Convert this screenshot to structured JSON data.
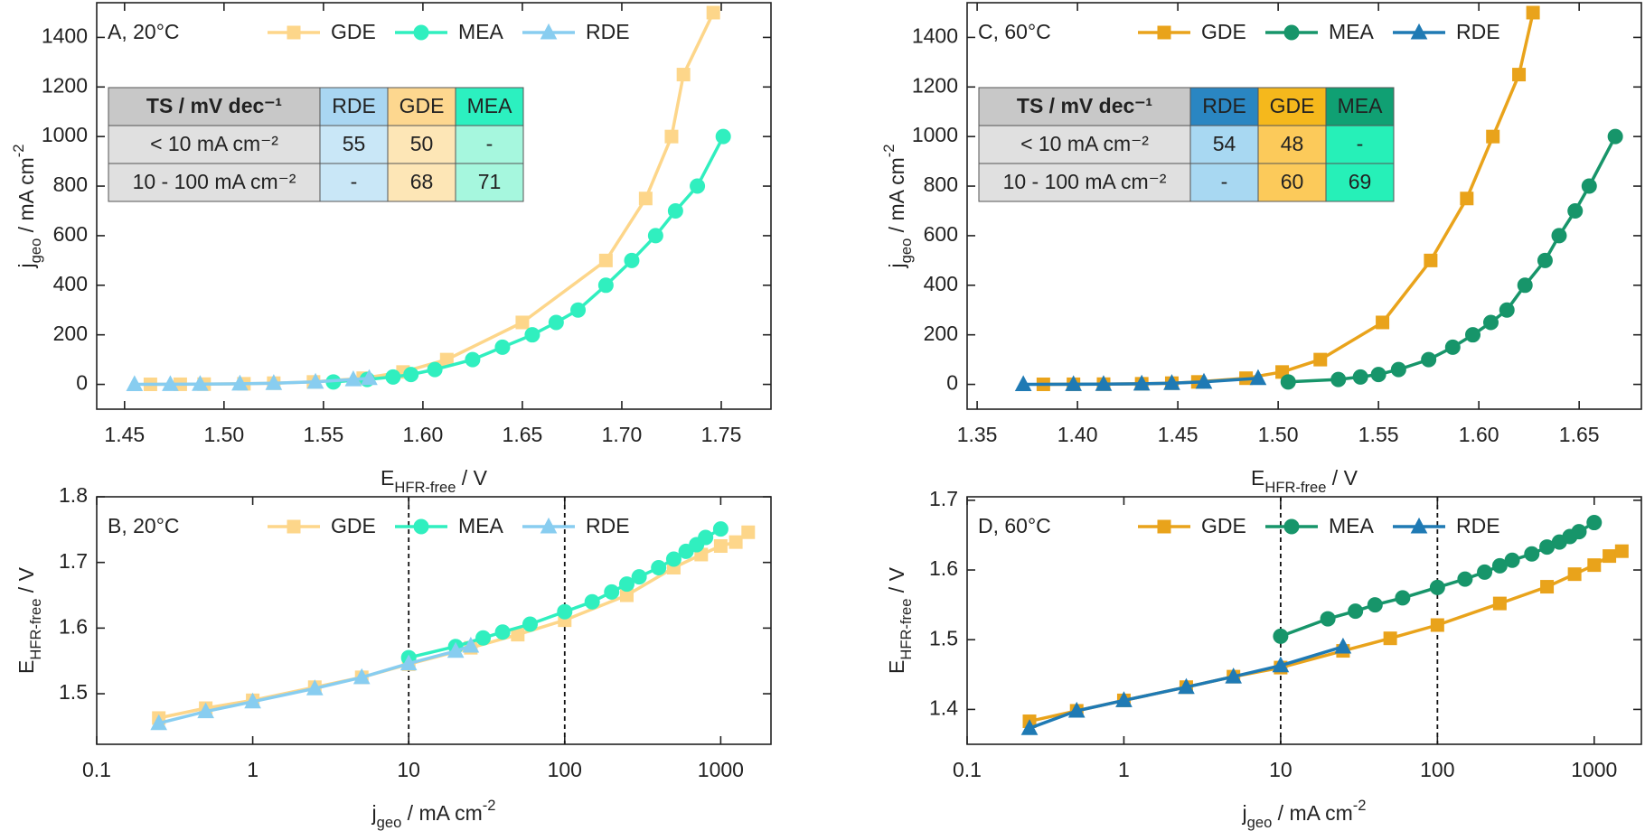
{
  "chart_data": [
    {
      "type": "line",
      "title": "A, 20°C",
      "xlabel": [
        {
          "text": "E"
        },
        {
          "text": "HFR-free",
          "sub": true
        },
        {
          "text": " / V"
        }
      ],
      "ylabel": [
        {
          "text": "j"
        },
        {
          "text": "geo",
          "sub": true
        },
        {
          "text": " / mA cm"
        },
        {
          "text": "-2",
          "sup": true
        }
      ],
      "xlim": [
        1.436,
        1.775
      ],
      "xticks": [
        1.45,
        {
          "value": 1.5,
          "label": "1.50"
        },
        1.55,
        {
          "value": 1.6,
          "label": "1.60"
        },
        1.65,
        {
          "value": 1.7,
          "label": "1.70"
        },
        1.75
      ],
      "ylim": [
        -100,
        1540
      ],
      "yticks": [
        0,
        200,
        400,
        600,
        800,
        1000,
        1200,
        1400
      ],
      "series": [
        {
          "name": "GDE",
          "color": "#fdd68a",
          "marker": "square",
          "x": [
            1.463,
            1.478,
            1.49,
            1.51,
            1.525,
            1.545,
            1.57,
            1.59,
            1.612,
            1.65,
            1.692,
            1.712,
            1.725,
            1.731,
            1.746
          ],
          "values": [
            0.25,
            0.5,
            1,
            2.5,
            5,
            10,
            25,
            50,
            100,
            250,
            500,
            750,
            1000,
            1250,
            1500
          ]
        },
        {
          "name": "MEA",
          "color": "#30efbf",
          "marker": "circle",
          "x": [
            1.555,
            1.572,
            1.585,
            1.594,
            1.606,
            1.625,
            1.64,
            1.655,
            1.667,
            1.678,
            1.692,
            1.705,
            1.717,
            1.727,
            1.738,
            1.751
          ],
          "values": [
            10,
            20,
            30,
            40,
            60,
            100,
            150,
            200,
            250,
            300,
            400,
            500,
            600,
            700,
            800,
            1000
          ]
        },
        {
          "name": "RDE",
          "color": "#88cdf0",
          "marker": "triangle",
          "x": [
            1.455,
            1.473,
            1.488,
            1.508,
            1.525,
            1.546,
            1.565,
            1.573
          ],
          "values": [
            0.25,
            0.5,
            1,
            2.5,
            5,
            10,
            20,
            25
          ]
        }
      ],
      "table": {
        "header": [
          "TS / mV dec⁻¹",
          "RDE",
          "GDE",
          "MEA"
        ],
        "header_colors": [
          "#c8c8c8",
          "#a9d6f2",
          "#fdd78f",
          "#2cf0c0"
        ],
        "body_colors": [
          "#e0e0e0",
          "#c9e7f7",
          "#fde6b6",
          "#a6f7de"
        ],
        "rows": [
          [
            "< 10 mA cm⁻²",
            55,
            50,
            "-"
          ],
          [
            "10 - 100 mA cm⁻²",
            "-",
            68,
            71
          ]
        ]
      }
    },
    {
      "type": "line",
      "title": "B, 20°C",
      "log_x": true,
      "xlabel": [
        {
          "text": "j"
        },
        {
          "text": "geo",
          "sub": true
        },
        {
          "text": " / mA cm"
        },
        {
          "text": "-2",
          "sup": true
        }
      ],
      "ylabel": [
        {
          "text": "E"
        },
        {
          "text": "HFR-free",
          "sub": true
        },
        {
          "text": " / V"
        }
      ],
      "xlim": [
        0.1,
        2100
      ],
      "xticks": [
        0.1,
        1,
        10,
        100,
        1000
      ],
      "ylim": [
        1.423,
        1.8
      ],
      "yticks": [
        1.5,
        1.6,
        1.7,
        1.8
      ],
      "vlines": [
        10,
        100
      ],
      "series": [
        {
          "name": "GDE",
          "color": "#fdd68a",
          "marker": "square",
          "x": [
            0.25,
            0.5,
            1,
            2.5,
            5,
            10,
            25,
            50,
            100,
            250,
            500,
            750,
            1000,
            1250,
            1500
          ],
          "values": [
            1.463,
            1.478,
            1.49,
            1.51,
            1.525,
            1.545,
            1.57,
            1.59,
            1.612,
            1.65,
            1.692,
            1.712,
            1.725,
            1.731,
            1.746
          ]
        },
        {
          "name": "MEA",
          "color": "#30efbf",
          "marker": "circle",
          "x": [
            10,
            20,
            30,
            40,
            60,
            100,
            150,
            200,
            250,
            300,
            400,
            500,
            600,
            700,
            800,
            1000
          ],
          "values": [
            1.555,
            1.572,
            1.585,
            1.594,
            1.606,
            1.625,
            1.64,
            1.655,
            1.667,
            1.678,
            1.692,
            1.705,
            1.717,
            1.727,
            1.738,
            1.751
          ]
        },
        {
          "name": "RDE",
          "color": "#88cdf0",
          "marker": "triangle",
          "x": [
            0.25,
            0.5,
            1,
            2.5,
            5,
            10,
            20,
            25
          ],
          "values": [
            1.455,
            1.473,
            1.488,
            1.508,
            1.525,
            1.546,
            1.565,
            1.573
          ]
        }
      ]
    },
    {
      "type": "line",
      "title": "C, 60°C",
      "xlabel": [
        {
          "text": "E"
        },
        {
          "text": "HFR-free",
          "sub": true
        },
        {
          "text": " / V"
        }
      ],
      "ylabel": [
        {
          "text": "j"
        },
        {
          "text": "geo",
          "sub": true
        },
        {
          "text": " / mA cm"
        },
        {
          "text": "-2",
          "sup": true
        }
      ],
      "xlim": [
        1.345,
        1.681
      ],
      "xticks": [
        1.35,
        {
          "value": 1.4,
          "label": "1.40"
        },
        1.45,
        {
          "value": 1.5,
          "label": "1.50"
        },
        1.55,
        {
          "value": 1.6,
          "label": "1.60"
        },
        1.65
      ],
      "ylim": [
        -100,
        1540
      ],
      "yticks": [
        0,
        200,
        400,
        600,
        800,
        1000,
        1200,
        1400
      ],
      "series": [
        {
          "name": "GDE",
          "color": "#e9a31b",
          "marker": "square",
          "x": [
            1.383,
            1.398,
            1.413,
            1.432,
            1.447,
            1.46,
            1.484,
            1.502,
            1.521,
            1.552,
            1.576,
            1.594,
            1.607,
            1.62,
            1.627
          ],
          "values": [
            0.25,
            0.5,
            1,
            2.5,
            5,
            10,
            25,
            50,
            100,
            250,
            500,
            750,
            1000,
            1250,
            1500
          ]
        },
        {
          "name": "MEA",
          "color": "#17956a",
          "marker": "circle",
          "x": [
            1.505,
            1.53,
            1.541,
            1.55,
            1.56,
            1.575,
            1.587,
            1.597,
            1.606,
            1.614,
            1.623,
            1.633,
            1.64,
            1.648,
            1.655,
            1.668
          ],
          "values": [
            10,
            20,
            30,
            40,
            60,
            100,
            150,
            200,
            250,
            300,
            400,
            500,
            600,
            700,
            800,
            1000
          ]
        },
        {
          "name": "RDE",
          "color": "#1f7ab4",
          "marker": "triangle",
          "x": [
            1.373,
            1.398,
            1.413,
            1.432,
            1.447,
            1.463,
            1.49
          ],
          "values": [
            0.25,
            0.5,
            1,
            2.5,
            5,
            10,
            25
          ]
        }
      ],
      "table": {
        "header": [
          "TS / mV dec⁻¹",
          "RDE",
          "GDE",
          "MEA"
        ],
        "header_colors": [
          "#c8c8c8",
          "#2a86c2",
          "#f5b81c",
          "#10a073"
        ],
        "body_colors": [
          "#e0e0e0",
          "#a8d8f2",
          "#fcca5a",
          "#26f0b8"
        ],
        "rows": [
          [
            "< 10 mA cm⁻²",
            54,
            48,
            "-"
          ],
          [
            "10 - 100 mA cm⁻²",
            "-",
            60,
            69
          ]
        ]
      }
    },
    {
      "type": "line",
      "title": "D, 60°C",
      "log_x": true,
      "xlabel": [
        {
          "text": "j"
        },
        {
          "text": "geo",
          "sub": true
        },
        {
          "text": " / mA cm"
        },
        {
          "text": "-2",
          "sup": true
        }
      ],
      "ylabel": [
        {
          "text": "E"
        },
        {
          "text": "HFR-free",
          "sub": true
        },
        {
          "text": " / V"
        }
      ],
      "xlim": [
        0.1,
        2000
      ],
      "xticks": [
        0.1,
        1,
        10,
        100,
        1000
      ],
      "ylim": [
        1.35,
        1.705
      ],
      "yticks": [
        1.4,
        1.5,
        1.6,
        1.7
      ],
      "vlines": [
        10,
        100
      ],
      "series": [
        {
          "name": "GDE",
          "color": "#e9a31b",
          "marker": "square",
          "x": [
            0.25,
            0.5,
            1,
            2.5,
            5,
            10,
            25,
            50,
            100,
            250,
            500,
            750,
            1000,
            1250,
            1500
          ],
          "values": [
            1.383,
            1.398,
            1.413,
            1.432,
            1.447,
            1.46,
            1.484,
            1.502,
            1.521,
            1.552,
            1.576,
            1.594,
            1.607,
            1.62,
            1.627
          ]
        },
        {
          "name": "MEA",
          "color": "#17956a",
          "marker": "circle",
          "x": [
            10,
            20,
            30,
            40,
            60,
            100,
            150,
            200,
            250,
            300,
            400,
            500,
            600,
            700,
            800,
            1000
          ],
          "values": [
            1.505,
            1.53,
            1.541,
            1.55,
            1.56,
            1.575,
            1.587,
            1.597,
            1.606,
            1.614,
            1.623,
            1.633,
            1.64,
            1.648,
            1.655,
            1.668
          ]
        },
        {
          "name": "RDE",
          "color": "#1f7ab4",
          "marker": "triangle",
          "x": [
            0.25,
            0.5,
            1,
            2.5,
            5,
            10,
            25
          ],
          "values": [
            1.373,
            1.398,
            1.413,
            1.432,
            1.447,
            1.463,
            1.49
          ]
        }
      ]
    }
  ]
}
